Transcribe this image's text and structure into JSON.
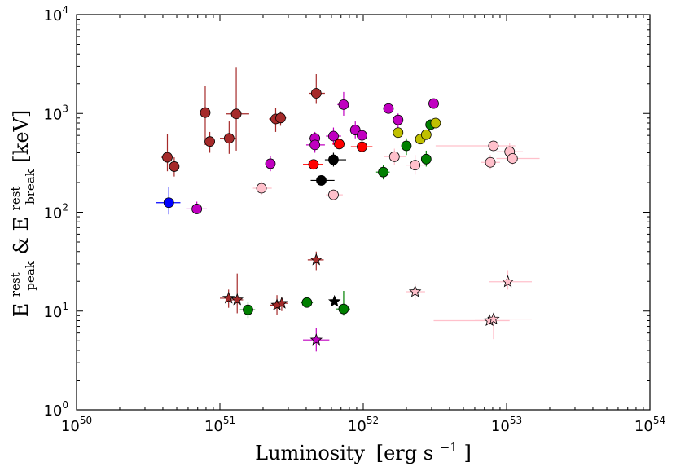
{
  "chart_data": {
    "type": "scatter",
    "title": "",
    "xlabel": {
      "main": "Luminosity",
      "unit": "[erg s",
      "unit_exp": "−1",
      "unit_close": "]"
    },
    "ylabel": {
      "peak": "E",
      "peak_sup": "rest",
      "peak_sub": "peak",
      "amp": " & ",
      "brk": "E",
      "brk_sup": "rest",
      "brk_sub": "break",
      "unit": " [keV]"
    },
    "x_scale": "log",
    "y_scale": "log",
    "xlim": [
      1e+50,
      1e+54
    ],
    "ylim": [
      1,
      10000
    ],
    "x_ticks": [
      {
        "base": "10",
        "exp": "50",
        "value": 1e+50
      },
      {
        "base": "10",
        "exp": "51",
        "value": 1e+51
      },
      {
        "base": "10",
        "exp": "52",
        "value": 1e+52
      },
      {
        "base": "10",
        "exp": "53",
        "value": 1e+53
      },
      {
        "base": "10",
        "exp": "54",
        "value": 1e+54
      }
    ],
    "y_ticks": [
      {
        "base": "10",
        "exp": "0",
        "value": 1
      },
      {
        "base": "10",
        "exp": "1",
        "value": 10
      },
      {
        "base": "10",
        "exp": "2",
        "value": 100
      },
      {
        "base": "10",
        "exp": "3",
        "value": 1000
      },
      {
        "base": "10",
        "exp": "4",
        "value": 10000
      }
    ],
    "colors": {
      "brown": "#a52a2a",
      "magenta": "#c000c0",
      "red": "#ff0000",
      "black": "#000000",
      "green": "#008000",
      "olive": "#c0c000",
      "pink": "#ffc0cb",
      "blue": "#0000ff"
    },
    "series": [
      {
        "name": "brown-peak",
        "marker": "circle",
        "color": "#a52a2a",
        "points": [
          {
            "x": 4.3e+50,
            "y": 360,
            "xl": 3.9e+50,
            "xh": 4.7e+50,
            "yl": 260,
            "yh": 620
          },
          {
            "x": 4.8e+50,
            "y": 290,
            "xl": 4.5e+50,
            "xh": 5.2e+50,
            "yl": 230,
            "yh": 360
          },
          {
            "x": 7.9e+50,
            "y": 1020,
            "xl": 7.4e+50,
            "xh": 8.4e+50,
            "yl": 480,
            "yh": 1900
          },
          {
            "x": 8.5e+50,
            "y": 520,
            "xl": 7.9e+50,
            "xh": 9.1e+50,
            "yl": 400,
            "yh": 650
          },
          {
            "x": 1.16e+51,
            "y": 560,
            "xl": 1e+51,
            "xh": 1.3e+51,
            "yl": 390,
            "yh": 830
          },
          {
            "x": 1.3e+51,
            "y": 990,
            "xl": 1.1e+51,
            "xh": 1.6e+51,
            "yl": 420,
            "yh": 2950
          },
          {
            "x": 2.45e+51,
            "y": 880,
            "xl": 2.2e+51,
            "xh": 2.7e+51,
            "yl": 650,
            "yh": 1130
          },
          {
            "x": 2.65e+51,
            "y": 900,
            "xl": 2.4e+51,
            "xh": 2.9e+51,
            "yl": 750,
            "yh": 1050
          },
          {
            "x": 4.7e+51,
            "y": 1600,
            "xl": 4.2e+51,
            "xh": 5.4e+51,
            "yl": 1250,
            "yh": 2500
          }
        ]
      },
      {
        "name": "magenta-peak",
        "marker": "circle",
        "color": "#c000c0",
        "points": [
          {
            "x": 6.9e+50,
            "y": 108,
            "xl": 5.8e+50,
            "xh": 8.1e+50,
            "yl": 98,
            "yh": 128
          },
          {
            "x": 2.25e+51,
            "y": 310,
            "xl": 2.1e+51,
            "xh": 2.4e+51,
            "yl": 260,
            "yh": 370
          },
          {
            "x": 4.6e+51,
            "y": 560,
            "xl": 4.2e+51,
            "xh": 5e+51,
            "yl": 500,
            "yh": 640
          },
          {
            "x": 4.6e+51,
            "y": 480,
            "xl": 4e+51,
            "xh": 5.4e+51,
            "yl": 400,
            "yh": 650
          },
          {
            "x": 6.2e+51,
            "y": 590,
            "xl": 5.5e+51,
            "xh": 7e+51,
            "yl": 480,
            "yh": 720
          },
          {
            "x": 7.3e+51,
            "y": 1230,
            "xl": 6.6e+51,
            "xh": 8e+51,
            "yl": 950,
            "yh": 1650
          },
          {
            "x": 8.8e+51,
            "y": 680,
            "xl": 8e+51,
            "xh": 9.6e+51,
            "yl": 560,
            "yh": 830
          },
          {
            "x": 9.8e+51,
            "y": 600,
            "xl": 9.2e+51,
            "xh": 1.05e+52,
            "yl": 540,
            "yh": 680
          },
          {
            "x": 1.5e+52,
            "y": 1120,
            "xl": 1.38e+52,
            "xh": 1.62e+52,
            "yl": 1050,
            "yh": 1200
          },
          {
            "x": 1.75e+52,
            "y": 860,
            "xl": 1.6e+52,
            "xh": 1.9e+52,
            "yl": 700,
            "yh": 1000
          },
          {
            "x": 3.1e+52,
            "y": 1260,
            "xl": 2.9e+52,
            "xh": 3.3e+52,
            "yl": 1150,
            "yh": 1400
          }
        ]
      },
      {
        "name": "red-peak",
        "marker": "circle",
        "color": "#ff0000",
        "points": [
          {
            "x": 4.5e+51,
            "y": 305,
            "xl": 3.8e+51,
            "xh": 5.2e+51,
            "yl": 280,
            "yh": 330
          },
          {
            "x": 6.8e+51,
            "y": 490,
            "xl": 6.1e+51,
            "xh": 7.5e+51,
            "yl": 460,
            "yh": 520
          },
          {
            "x": 9.8e+51,
            "y": 460,
            "xl": 8.2e+51,
            "xh": 1.16e+52,
            "yl": 420,
            "yh": 500
          }
        ]
      },
      {
        "name": "black-peak",
        "marker": "circle",
        "color": "#000000",
        "points": [
          {
            "x": 5.1e+51,
            "y": 210,
            "xl": 4.3e+51,
            "xh": 6.3e+51,
            "yl": 200,
            "yh": 220
          },
          {
            "x": 6.2e+51,
            "y": 340,
            "xl": 5.4e+51,
            "xh": 7.6e+51,
            "yl": 290,
            "yh": 400
          }
        ]
      },
      {
        "name": "green-peak",
        "marker": "circle",
        "color": "#008000",
        "points": [
          {
            "x": 1.38e+52,
            "y": 255,
            "xl": 1.23e+52,
            "xh": 1.53e+52,
            "yl": 215,
            "yh": 300
          },
          {
            "x": 2e+52,
            "y": 470,
            "xl": 1.85e+52,
            "xh": 2.15e+52,
            "yl": 380,
            "yh": 560
          },
          {
            "x": 2.75e+52,
            "y": 345,
            "xl": 2.6e+52,
            "xh": 2.9e+52,
            "yl": 290,
            "yh": 420
          },
          {
            "x": 2.95e+52,
            "y": 770,
            "xl": 2.8e+52,
            "xh": 3.1e+52,
            "yl": 680,
            "yh": 870
          }
        ]
      },
      {
        "name": "olive-peak",
        "marker": "circle",
        "color": "#c0c000",
        "points": [
          {
            "x": 1.75e+52,
            "y": 640,
            "xl": 1.65e+52,
            "xh": 1.85e+52,
            "yl": 570,
            "yh": 720
          },
          {
            "x": 2.5e+52,
            "y": 550,
            "xl": 2.35e+52,
            "xh": 2.65e+52,
            "yl": 500,
            "yh": 600
          },
          {
            "x": 2.75e+52,
            "y": 610,
            "xl": 2.6e+52,
            "xh": 2.9e+52,
            "yl": 560,
            "yh": 670
          },
          {
            "x": 3.2e+52,
            "y": 800,
            "xl": 3e+52,
            "xh": 3.4e+52,
            "yl": 740,
            "yh": 870
          }
        ]
      },
      {
        "name": "pink-peak",
        "marker": "circle",
        "color": "#ffc0cb",
        "points": [
          {
            "x": 1.95e+51,
            "y": 175,
            "xl": 1.7e+51,
            "xh": 2.3e+51,
            "yl": 150,
            "yh": 205
          },
          {
            "x": 6.2e+51,
            "y": 150,
            "xl": 5.5e+51,
            "xh": 7.2e+51,
            "yl": 135,
            "yh": 170
          },
          {
            "x": 1.65e+52,
            "y": 365,
            "xl": 1.4e+52,
            "xh": 2e+52,
            "yl": 300,
            "yh": 440
          },
          {
            "x": 2.3e+52,
            "y": 300,
            "xl": 2e+52,
            "xh": 2.7e+52,
            "yl": 240,
            "yh": 380
          },
          {
            "x": 7.7e+52,
            "y": 320,
            "xl": 6.6e+52,
            "xh": 9e+52,
            "yl": 270,
            "yh": 380
          },
          {
            "x": 8.1e+52,
            "y": 470,
            "xl": 3.2e+52,
            "xh": 1.15e+53,
            "yl": 430,
            "yh": 520
          },
          {
            "x": 1.05e+53,
            "y": 410,
            "xl": 8.5e+52,
            "xh": 1.3e+53,
            "yl": 330,
            "yh": 500
          },
          {
            "x": 1.1e+53,
            "y": 350,
            "xl": 8.5e+52,
            "xh": 1.7e+53,
            "yl": 300,
            "yh": 410
          }
        ]
      },
      {
        "name": "blue-peak",
        "marker": "circle",
        "color": "#0000ff",
        "points": [
          {
            "x": 4.4e+50,
            "y": 125,
            "xl": 3.6e+50,
            "xh": 5.3e+50,
            "yl": 95,
            "yh": 180
          }
        ]
      },
      {
        "name": "brown-break",
        "marker": "star",
        "color": "#a52a2a",
        "points": [
          {
            "x": 1.15e+51,
            "y": 13.5,
            "xl": 1e+51,
            "xh": 1.35e+51,
            "yl": 10.8,
            "yh": 16.5
          },
          {
            "x": 1.32e+51,
            "y": 13.0,
            "xl": 1.2e+51,
            "xh": 1.45e+51,
            "yl": 9.5,
            "yh": 24
          },
          {
            "x": 2.5e+51,
            "y": 11.5,
            "xl": 2.25e+51,
            "xh": 2.8e+51,
            "yl": 9.2,
            "yh": 14.5
          },
          {
            "x": 2.7e+51,
            "y": 12.0,
            "xl": 2.45e+51,
            "xh": 3e+51,
            "yl": 10.0,
            "yh": 14.0
          },
          {
            "x": 4.7e+51,
            "y": 33,
            "xl": 4.1e+51,
            "xh": 5.3e+51,
            "yl": 26,
            "yh": 40
          }
        ]
      },
      {
        "name": "magenta-break",
        "marker": "star",
        "color": "#c000c0",
        "points": [
          {
            "x": 4.7e+51,
            "y": 5.1,
            "xl": 3.8e+51,
            "xh": 5.8e+51,
            "yl": 3.9,
            "yh": 6.7
          }
        ]
      },
      {
        "name": "black-break",
        "marker": "star",
        "color": "#000000",
        "points": [
          {
            "x": 6.3e+51,
            "y": 12.5,
            "xl": 6.3e+51,
            "xh": 6.3e+51,
            "yl": 12.5,
            "yh": 12.5
          }
        ]
      },
      {
        "name": "green-break",
        "marker": "circle",
        "color": "#008000",
        "points": [
          {
            "x": 1.57e+51,
            "y": 10.3,
            "xl": 1.38e+51,
            "xh": 1.76e+51,
            "yl": 8.5,
            "yh": 12.3
          },
          {
            "x": 4.05e+51,
            "y": 12.2,
            "xl": 3.65e+51,
            "xh": 4.45e+51,
            "yl": 11.5,
            "yh": 13.0
          },
          {
            "x": 7.3e+51,
            "y": 10.5,
            "xl": 6.5e+51,
            "xh": 8.1e+51,
            "yl": 9.0,
            "yh": 16
          }
        ]
      },
      {
        "name": "pink-break",
        "marker": "star",
        "color": "#ffc0cb",
        "points": [
          {
            "x": 2.3e+52,
            "y": 15.7,
            "xl": 2e+52,
            "xh": 2.7e+52,
            "yl": 13.0,
            "yh": 19.0
          },
          {
            "x": 7.6e+52,
            "y": 8.0,
            "xl": 3.1e+52,
            "xh": 1.05e+53,
            "yl": 7.2,
            "yh": 8.8
          },
          {
            "x": 8.1e+52,
            "y": 8.3,
            "xl": 6e+52,
            "xh": 1.5e+53,
            "yl": 5.2,
            "yh": 9.5
          },
          {
            "x": 1.02e+53,
            "y": 19.8,
            "xl": 7.5e+52,
            "xh": 1.5e+53,
            "yl": 16.5,
            "yh": 26
          }
        ]
      }
    ]
  }
}
